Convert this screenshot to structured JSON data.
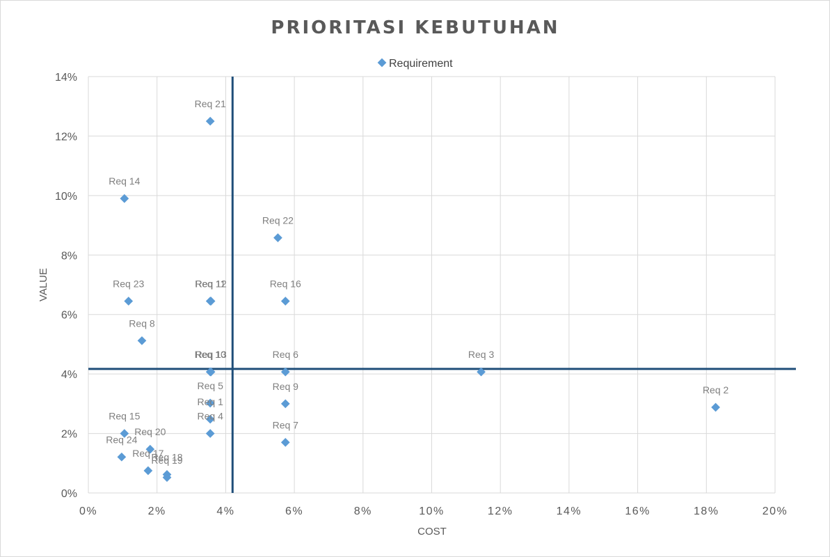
{
  "chart_data": {
    "type": "scatter",
    "title": "PRIORITASI  KEBUTUHAN",
    "xlabel": "COST",
    "ylabel": "VALUE",
    "xlim": [
      0,
      20
    ],
    "ylim": [
      0,
      14
    ],
    "x_ticks": [
      "0%",
      "2%",
      "4%",
      "6%",
      "8%",
      "10%",
      "12%",
      "14%",
      "16%",
      "18%",
      "20%"
    ],
    "y_ticks": [
      "0%",
      "2%",
      "4%",
      "6%",
      "8%",
      "10%",
      "12%",
      "14%"
    ],
    "grid": true,
    "legend": {
      "position": "top",
      "entries": [
        "Requirement"
      ]
    },
    "marker_color": "#5b9bd5",
    "reference_line_color": "#1f4e79",
    "reference_lines": {
      "x": 4.2,
      "y": 4.17
    },
    "series": [
      {
        "name": "Requirement",
        "points": [
          {
            "label": "Req 21",
            "x": 3.55,
            "y": 12.5
          },
          {
            "label": "Req 14",
            "x": 1.05,
            "y": 9.9
          },
          {
            "label": "Req 22",
            "x": 5.52,
            "y": 8.58
          },
          {
            "label": "Req 23",
            "x": 1.17,
            "y": 6.45
          },
          {
            "label": "Req 11",
            "x": 3.55,
            "y": 6.45
          },
          {
            "label": "Req 12",
            "x": 3.57,
            "y": 6.45
          },
          {
            "label": "Req 16",
            "x": 5.74,
            "y": 6.45
          },
          {
            "label": "Req 8",
            "x": 1.56,
            "y": 5.12
          },
          {
            "label": "Req 10",
            "x": 3.55,
            "y": 4.07
          },
          {
            "label": "Req 13",
            "x": 3.57,
            "y": 4.07
          },
          {
            "label": "Req 6",
            "x": 5.74,
            "y": 4.07
          },
          {
            "label": "Req 3",
            "x": 11.44,
            "y": 4.07
          },
          {
            "label": "Req 5",
            "x": 3.55,
            "y": 3.02
          },
          {
            "label": "Req 1",
            "x": 3.55,
            "y": 2.48
          },
          {
            "label": "Req 4",
            "x": 3.55,
            "y": 2.0
          },
          {
            "label": "Req 9",
            "x": 5.74,
            "y": 3.0
          },
          {
            "label": "Req 2",
            "x": 18.27,
            "y": 2.88
          },
          {
            "label": "Req 7",
            "x": 5.74,
            "y": 1.7
          },
          {
            "label": "Req 15",
            "x": 1.05,
            "y": 2.0
          },
          {
            "label": "Req 20",
            "x": 1.8,
            "y": 1.47
          },
          {
            "label": "Req 24",
            "x": 0.97,
            "y": 1.21
          },
          {
            "label": "Req 17",
            "x": 1.74,
            "y": 0.75
          },
          {
            "label": "Req 18",
            "x": 2.29,
            "y": 0.62
          },
          {
            "label": "Req 19",
            "x": 2.29,
            "y": 0.52
          }
        ]
      }
    ]
  }
}
